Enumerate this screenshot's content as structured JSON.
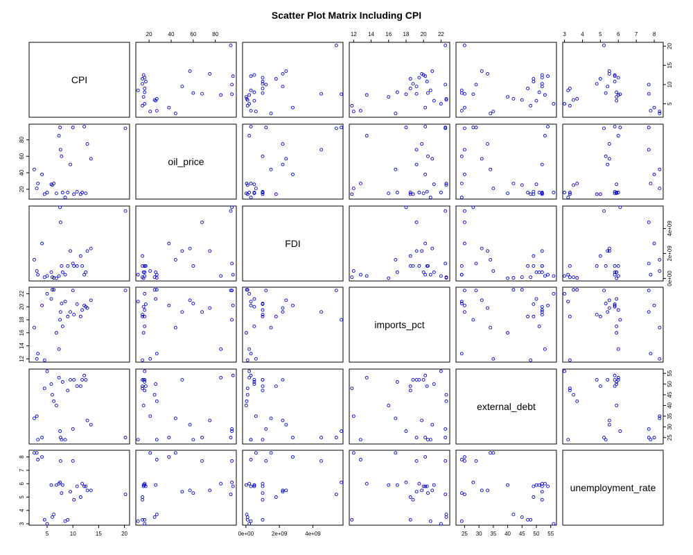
{
  "chart_data": {
    "type": "scatter",
    "subtype": "scatter-matrix",
    "title": "Scatter Plot Matrix Including CPI",
    "point_color": "#0000cc",
    "variables": [
      {
        "name": "CPI",
        "range": [
          1.5,
          21
        ],
        "ticks": [
          5,
          10,
          15,
          20
        ],
        "tick_labels": [
          "5",
          "10",
          "15",
          "20"
        ]
      },
      {
        "name": "oil_price",
        "range": [
          8,
          99
        ],
        "ticks": [
          20,
          40,
          60,
          80
        ],
        "tick_labels": [
          "20",
          "40",
          "60",
          "80"
        ]
      },
      {
        "name": "FDI",
        "range": [
          -200000000.0,
          5800000000.0
        ],
        "ticks": [
          0,
          2000000000,
          4000000000
        ],
        "tick_labels": [
          "0e+00",
          "2e+09",
          "4e+09"
        ]
      },
      {
        "name": "imports_pct",
        "range": [
          11.5,
          23
        ],
        "ticks": [
          12,
          14,
          16,
          18,
          20,
          22
        ],
        "tick_labels": [
          "12",
          "14",
          "16",
          "18",
          "20",
          "22"
        ]
      },
      {
        "name": "external_debt",
        "range": [
          22,
          57
        ],
        "ticks": [
          25,
          30,
          35,
          40,
          45,
          50,
          55
        ],
        "tick_labels": [
          "25",
          "30",
          "35",
          "40",
          "45",
          "50",
          "55"
        ]
      },
      {
        "name": "unemployment_rate",
        "range": [
          2.9,
          8.5
        ],
        "ticks": [
          3,
          4,
          5,
          6,
          7,
          8
        ],
        "tick_labels": [
          "3",
          "4",
          "5",
          "6",
          "7",
          "8"
        ]
      }
    ],
    "records": [
      [
        2.5,
        44,
        1500000000.0,
        16.8,
        34,
        8.3
      ],
      [
        3.0,
        21,
        600000000.0,
        12.0,
        35,
        8.3
      ],
      [
        3.2,
        27,
        300000000.0,
        12.8,
        24,
        7.8
      ],
      [
        4.0,
        38,
        2800000000.0,
        20.2,
        25,
        8.0
      ],
      [
        4.5,
        14,
        100000000.0,
        11.8,
        48,
        3.3
      ],
      [
        5.0,
        16,
        200000000.0,
        22.0,
        56,
        3.0
      ],
      [
        5.8,
        26,
        500000000.0,
        21.2,
        50,
        5.9
      ],
      [
        6.0,
        25,
        100000000.0,
        22.6,
        45,
        3.5
      ],
      [
        6.3,
        27,
        50000000.0,
        22.6,
        42,
        3.7
      ],
      [
        6.8,
        15,
        20000000.0,
        16.0,
        40,
        5.9
      ],
      [
        7.3,
        85,
        200000000.0,
        13.5,
        53,
        6.0
      ],
      [
        7.5,
        95,
        5700000000.0,
        18.0,
        28,
        6.1
      ],
      [
        7.6,
        68,
        4500000000.0,
        19.2,
        25,
        7.7
      ],
      [
        7.8,
        60,
        1000000000.0,
        20.5,
        24,
        5.3
      ],
      [
        8.0,
        16,
        500000000.0,
        17.0,
        51,
        5.9
      ],
      [
        8.5,
        10,
        300000000.0,
        20.8,
        24,
        3.2
      ],
      [
        9.0,
        16,
        1000000000.0,
        18.5,
        47,
        3.3
      ],
      [
        9.5,
        50,
        2200000000.0,
        19.2,
        52,
        5.4
      ],
      [
        10.0,
        95,
        1200000000.0,
        22.5,
        29,
        7.7
      ],
      [
        10.2,
        14,
        1000000000.0,
        18.8,
        52,
        4.8
      ],
      [
        10.8,
        17,
        1000000000.0,
        20.4,
        49,
        5.8
      ],
      [
        11.5,
        14,
        1800000000.0,
        18.5,
        49,
        5.0
      ],
      [
        11.8,
        16,
        1000000000.0,
        19.5,
        52,
        6.0
      ],
      [
        12.2,
        96,
        300000000.0,
        20.2,
        54,
        5.8
      ],
      [
        12.5,
        15,
        500000000.0,
        20.0,
        52,
        5.8
      ],
      [
        12.8,
        75,
        2200000000.0,
        19.8,
        33,
        5.5
      ],
      [
        13.5,
        57,
        2400000000.0,
        21.0,
        31,
        5.5
      ],
      [
        20.2,
        94,
        5400000000.0,
        22.5,
        25,
        5.2
      ]
    ]
  }
}
